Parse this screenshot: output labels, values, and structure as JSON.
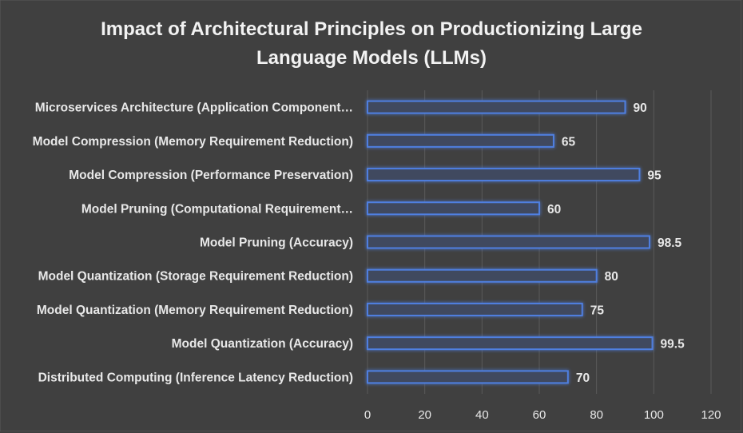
{
  "chart_data": {
    "type": "bar",
    "orientation": "horizontal",
    "title": "Impact of Architectural Principles on Productionizing Large Language Models (LLMs)",
    "title_lines": [
      "Impact of Architectural Principles on Productionizing Large",
      "Language Models (LLMs)"
    ],
    "categories": [
      "Microservices Architecture (Application Component…",
      "Model Compression (Memory Requirement Reduction)",
      "Model Compression (Performance Preservation)",
      "Model Pruning (Computational Requirement…",
      "Model Pruning (Accuracy)",
      "Model Quantization (Storage Requirement Reduction)",
      "Model Quantization (Memory Requirement Reduction)",
      "Model Quantization (Accuracy)",
      "Distributed Computing (Inference Latency Reduction)"
    ],
    "values": [
      90,
      65,
      95,
      60,
      98.5,
      80,
      75,
      99.5,
      70
    ],
    "value_labels": [
      "90",
      "65",
      "95",
      "60",
      "98.5",
      "80",
      "75",
      "99.5",
      "70"
    ],
    "xlim": [
      0,
      120
    ],
    "xticks": [
      "0",
      "20",
      "40",
      "60",
      "80",
      "100",
      "120"
    ],
    "xlabel": "",
    "ylabel": "",
    "grid": true,
    "legend": "none",
    "colors": {
      "background": "#404040",
      "bar_fill": "#404a5e",
      "bar_edge": "#4472c4",
      "bar_glow": "#4f7fe0",
      "grid": "#5a5a5a",
      "text": "#e8e8e8"
    }
  }
}
